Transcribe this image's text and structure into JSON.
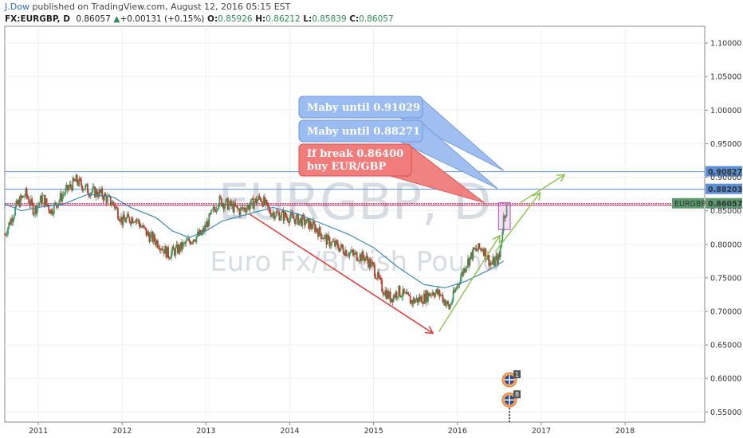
{
  "header": {
    "author": "J.Dow",
    "published": " published on TradingView.com, August 12, 2016 05:15 EST",
    "symbol_line": "FX:EURGBP, D",
    "last": "0.86057",
    "change_arrow": "▲",
    "change": "+0.00131 (+0.15%)",
    "o_label": "O:",
    "o_value": "0.85926",
    "h_label": "H:",
    "h_value": "0.86212",
    "l_label": "L:",
    "l_value": "0.85839",
    "c_label": "C:",
    "c_value": "0.86057"
  },
  "watermark": {
    "symbol": "EURGBP, D",
    "name": "Euro Fx/British Pound"
  },
  "colors": {
    "candle_up": "#3a9b5c",
    "candle_down": "#c0392b",
    "ma": "#3d8ab3",
    "hline": "#5b8fd6",
    "price_line": "#c2185b",
    "callout_blue": "#9bbcf0",
    "callout_red": "#f07c7c",
    "arrow_red": "#e53935",
    "arrow_green": "#8bc34a"
  },
  "chart_data": {
    "type": "candlestick",
    "xlim": [
      2010.6,
      2018.95
    ],
    "ylim": [
      0.535,
      1.125
    ],
    "x_ticks": [
      "2011",
      "2012",
      "2013",
      "2014",
      "2015",
      "2016",
      "2017",
      "2018"
    ],
    "x_tick_values": [
      2011,
      2012,
      2013,
      2014,
      2015,
      2016,
      2017,
      2018
    ],
    "y_ticks": [
      "0.55000",
      "0.60000",
      "0.65000",
      "0.70000",
      "0.75000",
      "0.80000",
      "0.85000",
      "0.90000",
      "0.95000",
      "1.00000",
      "1.05000",
      "1.10000"
    ],
    "y_tick_values": [
      0.55,
      0.6,
      0.65,
      0.7,
      0.75,
      0.8,
      0.85,
      0.9,
      0.95,
      1.0,
      1.05,
      1.1
    ],
    "price_path": [
      [
        2010.6,
        0.815
      ],
      [
        2010.75,
        0.86
      ],
      [
        2010.85,
        0.875
      ],
      [
        2010.95,
        0.85
      ],
      [
        2011.05,
        0.87
      ],
      [
        2011.15,
        0.85
      ],
      [
        2011.3,
        0.875
      ],
      [
        2011.45,
        0.895
      ],
      [
        2011.6,
        0.88
      ],
      [
        2011.75,
        0.875
      ],
      [
        2011.9,
        0.86
      ],
      [
        2012.0,
        0.835
      ],
      [
        2012.15,
        0.84
      ],
      [
        2012.3,
        0.815
      ],
      [
        2012.45,
        0.8
      ],
      [
        2012.55,
        0.785
      ],
      [
        2012.7,
        0.795
      ],
      [
        2012.85,
        0.81
      ],
      [
        2012.95,
        0.815
      ],
      [
        2013.05,
        0.84
      ],
      [
        2013.15,
        0.865
      ],
      [
        2013.25,
        0.86
      ],
      [
        2013.4,
        0.85
      ],
      [
        2013.55,
        0.86
      ],
      [
        2013.65,
        0.87
      ],
      [
        2013.75,
        0.85
      ],
      [
        2013.85,
        0.845
      ],
      [
        2014.0,
        0.84
      ],
      [
        2014.15,
        0.835
      ],
      [
        2014.3,
        0.825
      ],
      [
        2014.45,
        0.805
      ],
      [
        2014.6,
        0.795
      ],
      [
        2014.75,
        0.785
      ],
      [
        2014.9,
        0.78
      ],
      [
        2015.0,
        0.765
      ],
      [
        2015.1,
        0.735
      ],
      [
        2015.2,
        0.72
      ],
      [
        2015.3,
        0.73
      ],
      [
        2015.45,
        0.715
      ],
      [
        2015.6,
        0.72
      ],
      [
        2015.7,
        0.73
      ],
      [
        2015.8,
        0.725
      ],
      [
        2015.9,
        0.705
      ],
      [
        2016.0,
        0.74
      ],
      [
        2016.1,
        0.77
      ],
      [
        2016.2,
        0.79
      ],
      [
        2016.3,
        0.795
      ],
      [
        2016.4,
        0.77
      ],
      [
        2016.5,
        0.78
      ],
      [
        2016.55,
        0.84
      ],
      [
        2016.6,
        0.86
      ]
    ],
    "moving_average": [
      [
        2010.6,
        0.86
      ],
      [
        2010.8,
        0.85
      ],
      [
        2011.0,
        0.855
      ],
      [
        2011.3,
        0.86
      ],
      [
        2011.6,
        0.875
      ],
      [
        2011.9,
        0.87
      ],
      [
        2012.1,
        0.855
      ],
      [
        2012.4,
        0.84
      ],
      [
        2012.6,
        0.82
      ],
      [
        2012.8,
        0.81
      ],
      [
        2013.0,
        0.82
      ],
      [
        2013.2,
        0.835
      ],
      [
        2013.5,
        0.845
      ],
      [
        2013.8,
        0.855
      ],
      [
        2014.1,
        0.845
      ],
      [
        2014.4,
        0.83
      ],
      [
        2014.7,
        0.815
      ],
      [
        2015.0,
        0.795
      ],
      [
        2015.3,
        0.765
      ],
      [
        2015.6,
        0.74
      ],
      [
        2015.85,
        0.735
      ],
      [
        2016.1,
        0.745
      ],
      [
        2016.35,
        0.76
      ],
      [
        2016.55,
        0.775
      ]
    ],
    "horizontal_lines": [
      {
        "y": 0.90827,
        "label": "0.90827"
      },
      {
        "y": 0.88203,
        "label": "0.88203"
      }
    ],
    "current_price": {
      "y": 0.86057,
      "label": "0.86057",
      "symbol": "EURGBP"
    },
    "red_arrow": {
      "from": [
        2013.52,
        0.845
      ],
      "to": [
        2015.7,
        0.668
      ]
    },
    "green_arrows": [
      {
        "from": [
          2015.78,
          0.67
        ],
        "to": [
          2016.5,
          0.812
        ]
      },
      {
        "from": [
          2016.46,
          0.79
        ],
        "to": [
          2016.98,
          0.876
        ]
      },
      {
        "from": [
          2016.75,
          0.862
        ],
        "to": [
          2017.27,
          0.903
        ]
      }
    ],
    "box": {
      "x0": 2016.49,
      "x1": 2016.63,
      "y0": 0.822,
      "y1": 0.862
    },
    "callouts": [
      {
        "text": "Maby until 0.91029",
        "anchor": [
          2016.55,
          0.91
        ],
        "color": "blue"
      },
      {
        "text": "Maby until 0.88271",
        "anchor": [
          2016.48,
          0.883
        ],
        "color": "blue"
      },
      {
        "text1": "If break 0.86400",
        "text2": "buy  EUR/GBP",
        "anchor": [
          2016.32,
          0.862
        ],
        "color": "red"
      }
    ],
    "event_icons": [
      {
        "x": 2016.62,
        "y": 0.598,
        "badge": "1"
      },
      {
        "x": 2016.62,
        "y": 0.568,
        "badge": "8"
      }
    ]
  }
}
